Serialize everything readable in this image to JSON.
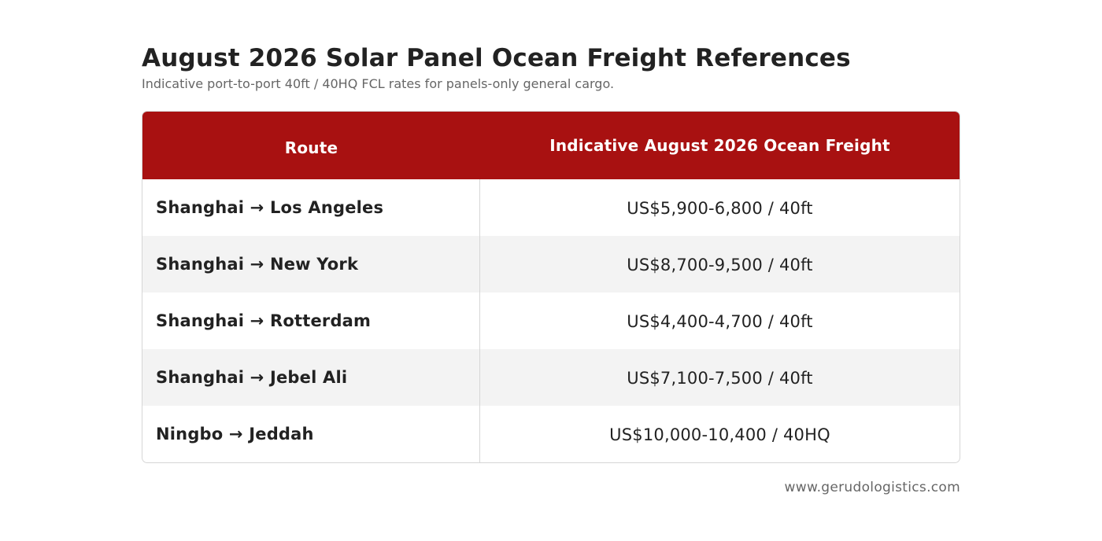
{
  "header": {
    "title": "August 2026 Solar Panel Ocean Freight References",
    "subtitle": "Indicative port-to-port 40ft / 40HQ FCL rates for panels-only general cargo."
  },
  "table": {
    "columns": [
      "Route",
      "Indicative August 2026 Ocean Freight"
    ],
    "rows": [
      {
        "route": "Shanghai → Los Angeles",
        "rate": "US$5,900-6,800 / 40ft"
      },
      {
        "route": "Shanghai → New York",
        "rate": "US$8,700-9,500 / 40ft"
      },
      {
        "route": "Shanghai → Rotterdam",
        "rate": "US$4,400-4,700 / 40ft"
      },
      {
        "route": "Shanghai → Jebel Ali",
        "rate": "US$7,100-7,500 / 40ft"
      },
      {
        "route": "Ningbo → Jeddah",
        "rate": "US$10,000-10,400 / 40HQ"
      }
    ]
  },
  "footer": {
    "website": "www.gerudologistics.com"
  },
  "colors": {
    "header_bg": "#a81111",
    "header_text": "#ffffff",
    "alt_row_bg": "#f3f3f3",
    "text": "#222222",
    "muted_text": "#666666"
  }
}
